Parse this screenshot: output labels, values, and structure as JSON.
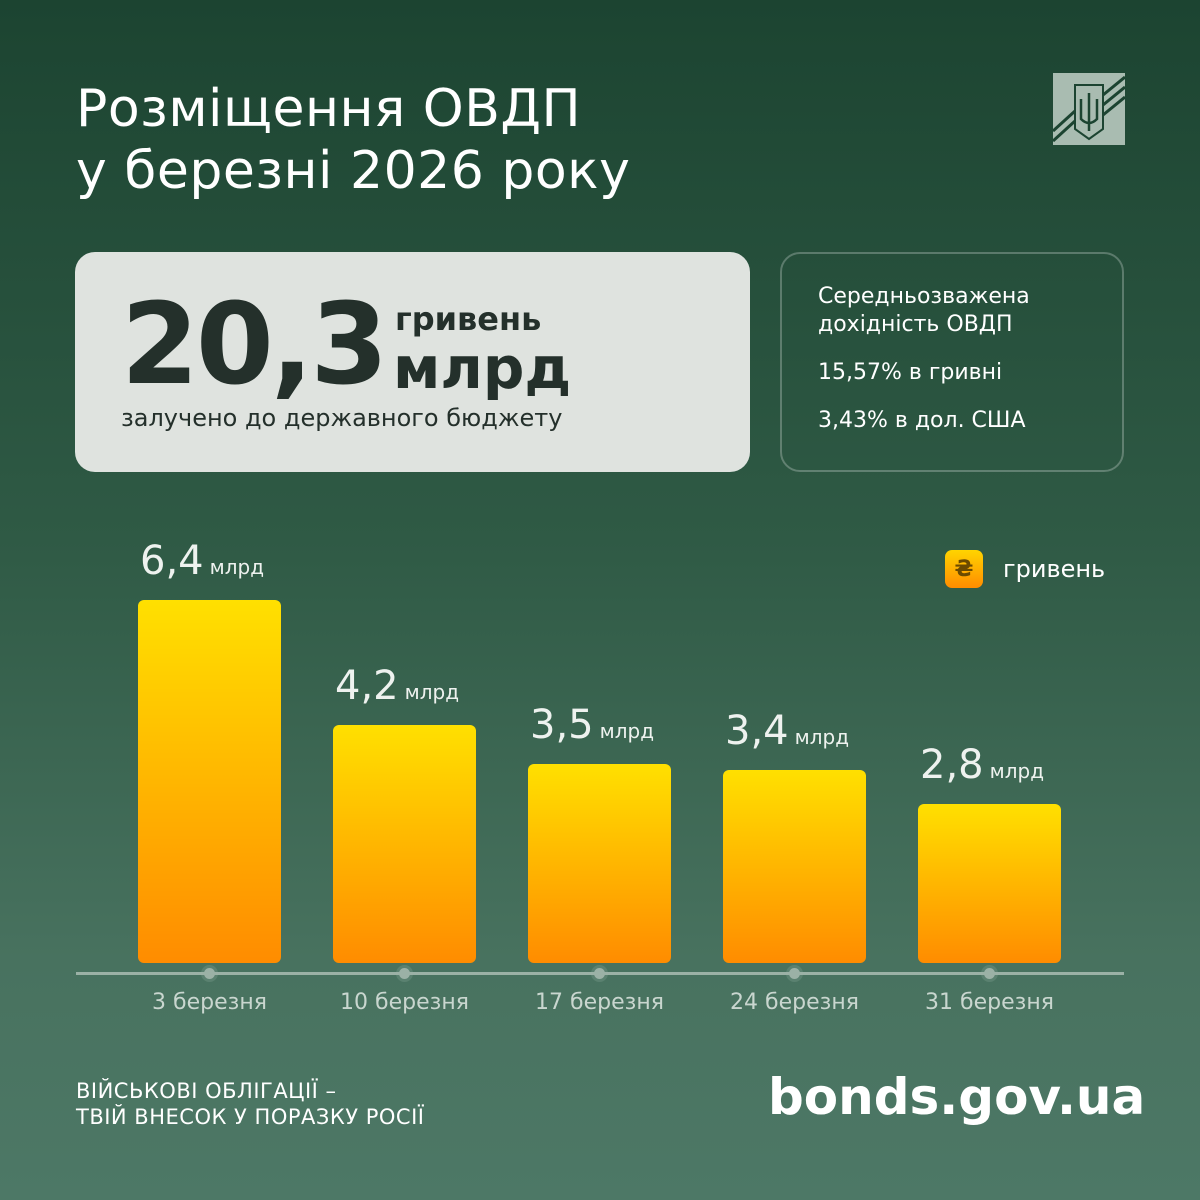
{
  "title_line1": "Розміщення ОВДП",
  "title_line2": "у березні 2026 року",
  "summary": {
    "amount": "20,3",
    "unit_top": "гривень",
    "unit_bottom": "млрд",
    "caption": "залучено до державного бюджету"
  },
  "yield": {
    "heading1": "Середньозважена",
    "heading2": "дохідність ОВДП",
    "uah": "15,57% в гривні",
    "usd": "3,43% в дол. США"
  },
  "legend": {
    "icon": "₴",
    "label": "гривень"
  },
  "chart_data": {
    "type": "bar",
    "categories": [
      "3 березня",
      "10 березня",
      "17 березня",
      "24 березня",
      "31 березня"
    ],
    "values": [
      6.4,
      4.2,
      3.5,
      3.4,
      2.8
    ],
    "value_labels": [
      "6,4",
      "4,2",
      "3,5",
      "3,4",
      "2,8"
    ],
    "value_unit": "млрд",
    "ylim": [
      0,
      6.4
    ],
    "series": [
      {
        "name": "гривень",
        "values": [
          6.4,
          4.2,
          3.5,
          3.4,
          2.8
        ]
      }
    ],
    "colors": [
      "#ffe000",
      "#ff8c00"
    ]
  },
  "footer": {
    "slogan1": "ВІЙСЬКОВІ ОБЛІГАЦІЇ –",
    "slogan2": "ТВІЙ ВНЕСОК У ПОРАЗКУ РОСІЇ",
    "site": "bonds.gov.ua"
  }
}
